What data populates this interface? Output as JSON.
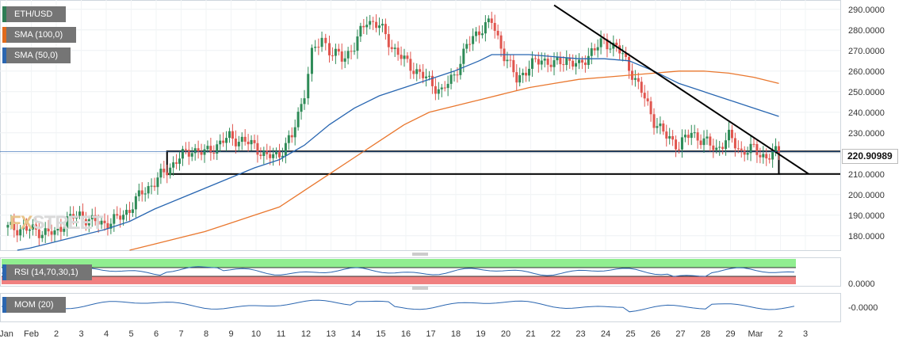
{
  "legend": {
    "symbol": "ETH/USD",
    "sma100": "SMA (100,0)",
    "sma50": "SMA (50,0)",
    "rsi": "RSI (14,70,30,1)",
    "mom": "MOM (20)"
  },
  "watermark": {
    "fx": "FX",
    "street": "STREET"
  },
  "last_price_label": "220.90989",
  "colors": {
    "up": "#2e8b57",
    "down": "#e0554e",
    "sma100": "#e9772e",
    "sma50": "#2866b1",
    "trend": "#000000",
    "rsi_over": "#90ee90",
    "rsi_under": "#f08080",
    "oscillator": "#2b66b0"
  },
  "chart_data": {
    "type": "candlestick",
    "y_ticks": [
      "180.0000",
      "190.0000",
      "200.0000",
      "210.0000",
      "220.0000",
      "230.0000",
      "240.0000",
      "250.0000",
      "260.0000",
      "270.0000",
      "280.0000",
      "290.0000"
    ],
    "ylim": [
      173,
      293
    ],
    "x_labels": [
      "Jan",
      "Feb",
      "2",
      "3",
      "4",
      "5",
      "6",
      "7",
      "8",
      "9",
      "10",
      "11",
      "12",
      "13",
      "14",
      "15",
      "16",
      "17",
      "18",
      "19",
      "20",
      "21",
      "22",
      "23",
      "24",
      "25",
      "26",
      "27",
      "28",
      "29",
      "Mar",
      "2",
      "3"
    ],
    "close_path": [
      [
        0,
        184
      ],
      [
        1,
        183
      ],
      [
        2,
        181
      ],
      [
        2.5,
        188
      ],
      [
        3,
        190
      ],
      [
        3.5,
        187
      ],
      [
        4,
        186
      ],
      [
        4.5,
        188
      ],
      [
        5,
        193
      ],
      [
        5.5,
        201
      ],
      [
        6,
        206
      ],
      [
        6.5,
        212
      ],
      [
        7,
        218
      ],
      [
        7.5,
        222
      ],
      [
        8,
        220
      ],
      [
        8.5,
        224
      ],
      [
        9,
        228
      ],
      [
        9.5,
        226
      ],
      [
        10,
        224
      ],
      [
        10.5,
        218
      ],
      [
        11,
        220
      ],
      [
        11.5,
        228
      ],
      [
        12,
        250
      ],
      [
        12.3,
        268
      ],
      [
        12.7,
        276
      ],
      [
        13,
        270
      ],
      [
        13.5,
        266
      ],
      [
        14,
        272
      ],
      [
        14.5,
        285
      ],
      [
        15,
        282
      ],
      [
        15.5,
        272
      ],
      [
        16,
        265
      ],
      [
        16.5,
        260
      ],
      [
        17,
        255
      ],
      [
        17.5,
        250
      ],
      [
        18,
        258
      ],
      [
        18.5,
        272
      ],
      [
        19,
        280
      ],
      [
        19.5,
        284
      ],
      [
        20,
        268
      ],
      [
        20.5,
        256
      ],
      [
        21,
        262
      ],
      [
        21.5,
        266
      ],
      [
        22,
        263
      ],
      [
        22.5,
        266
      ],
      [
        23,
        262
      ],
      [
        23.5,
        270
      ],
      [
        24,
        274
      ],
      [
        24.5,
        272
      ],
      [
        25,
        262
      ],
      [
        25.5,
        250
      ],
      [
        26,
        236
      ],
      [
        26.5,
        228
      ],
      [
        27,
        224
      ],
      [
        27.5,
        230
      ],
      [
        28,
        226
      ],
      [
        28.5,
        222
      ],
      [
        29,
        228
      ],
      [
        29.5,
        221
      ],
      [
        30,
        222
      ],
      [
        30.5,
        218
      ],
      [
        31,
        221
      ]
    ],
    "sma50": [
      [
        0.5,
        173
      ],
      [
        1,
        174
      ],
      [
        2,
        177
      ],
      [
        3,
        180
      ],
      [
        4,
        183
      ],
      [
        5,
        187
      ],
      [
        6,
        193
      ],
      [
        7,
        198
      ],
      [
        8,
        203
      ],
      [
        9,
        208
      ],
      [
        10,
        213
      ],
      [
        11,
        217
      ],
      [
        12,
        224
      ],
      [
        13,
        234
      ],
      [
        14,
        242
      ],
      [
        15,
        248
      ],
      [
        16,
        252
      ],
      [
        17,
        256
      ],
      [
        18,
        260
      ],
      [
        19,
        265
      ],
      [
        19.5,
        268
      ],
      [
        20,
        268
      ],
      [
        21,
        268
      ],
      [
        22,
        267
      ],
      [
        23,
        266
      ],
      [
        24,
        266
      ],
      [
        25,
        265
      ],
      [
        26,
        260
      ],
      [
        27,
        254
      ],
      [
        28,
        250
      ],
      [
        29,
        246
      ],
      [
        30,
        242
      ],
      [
        31,
        238
      ]
    ],
    "sma100": [
      [
        5,
        173
      ],
      [
        6,
        176
      ],
      [
        7,
        179
      ],
      [
        8,
        182
      ],
      [
        9,
        186
      ],
      [
        10,
        190
      ],
      [
        11,
        194
      ],
      [
        12,
        202
      ],
      [
        13,
        210
      ],
      [
        14,
        218
      ],
      [
        15,
        226
      ],
      [
        16,
        234
      ],
      [
        17,
        240
      ],
      [
        18,
        243
      ],
      [
        19,
        246
      ],
      [
        20,
        249
      ],
      [
        21,
        252
      ],
      [
        22,
        254
      ],
      [
        23,
        256
      ],
      [
        24,
        257
      ],
      [
        25,
        258
      ],
      [
        26,
        259
      ],
      [
        27,
        260
      ],
      [
        28,
        260
      ],
      [
        29,
        259
      ],
      [
        30,
        257
      ],
      [
        31,
        254
      ]
    ],
    "support_box": {
      "x_from": 6.5,
      "x_to": 31,
      "low": 210,
      "high": 221
    },
    "trendline": {
      "x_from": 22,
      "y_from": 292,
      "x_to": 32.2,
      "y_to": 210
    },
    "last_price": 220.90989,
    "rsi": {
      "label": "RSI (14,70,30,1)",
      "tick": "0.0000"
    },
    "momentum": {
      "label": "MOM (20)",
      "tick": "-0.0000"
    }
  }
}
